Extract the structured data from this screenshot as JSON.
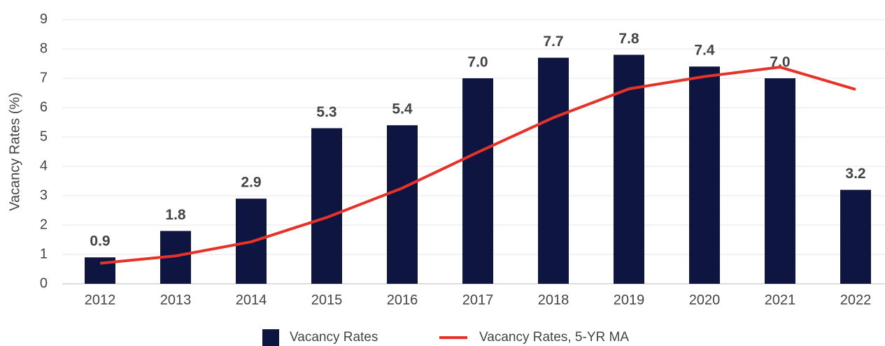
{
  "chart_data": {
    "type": "bar",
    "y_label": "Vacancy Rates (%)",
    "categories": [
      "2012",
      "2013",
      "2014",
      "2015",
      "2016",
      "2017",
      "2018",
      "2019",
      "2020",
      "2021",
      "2022"
    ],
    "series": [
      {
        "name": "Vacancy Rates",
        "type": "bar",
        "color": "#0e1540",
        "values": [
          0.9,
          1.8,
          2.9,
          5.3,
          5.4,
          7.0,
          7.7,
          7.8,
          7.4,
          7.0,
          3.2
        ],
        "value_labels": [
          "0.9",
          "1.8",
          "2.9",
          "5.3",
          "5.4",
          "7.0",
          "7.7",
          "7.8",
          "7.4",
          "7.0",
          "3.2"
        ]
      },
      {
        "name": "Vacancy Rates, 5-YR MA",
        "type": "line",
        "color": "#e63329",
        "values": [
          0.7,
          0.95,
          1.43,
          2.26,
          3.26,
          4.48,
          5.66,
          6.64,
          7.06,
          7.38,
          6.62
        ]
      }
    ],
    "ylim": [
      0,
      9
    ],
    "yticks": [
      0,
      1,
      2,
      3,
      4,
      5,
      6,
      7,
      8,
      9
    ],
    "grid": true,
    "legend": "bottom"
  }
}
